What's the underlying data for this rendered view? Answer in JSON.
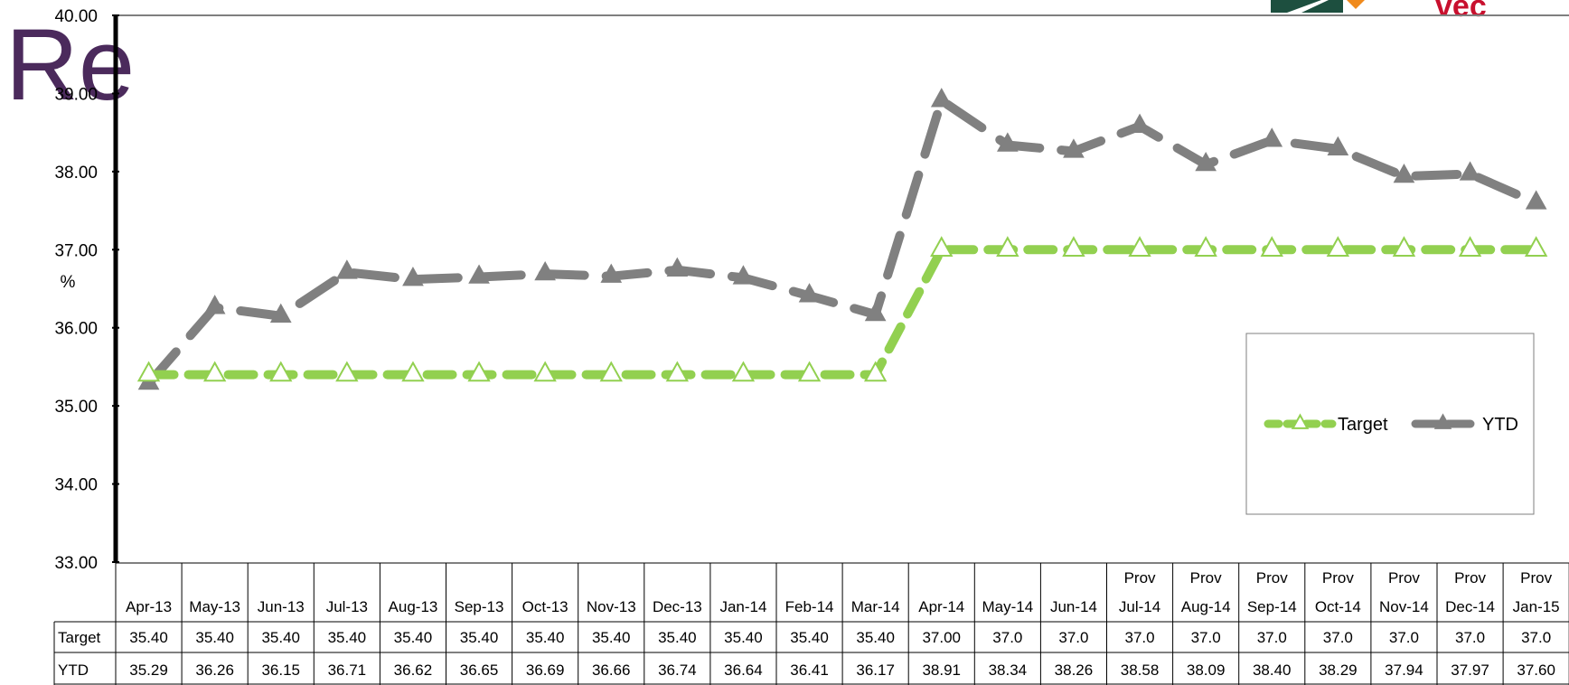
{
  "title_fragment": "Re",
  "logo": {
    "brand_text": "vec",
    "colors": {
      "green": "#1d4f3f",
      "orange": "#f08a1c",
      "red": "#c8102e"
    }
  },
  "chart_data": {
    "type": "line",
    "ylabel": "%",
    "ylim": [
      33.0,
      40.0
    ],
    "yticks": [
      "33.00",
      "34.00",
      "35.00",
      "36.00",
      "37.00",
      "38.00",
      "39.00",
      "40.00"
    ],
    "grid": false,
    "legend_position": "right",
    "categories": [
      {
        "prefix": "",
        "label": "Apr-13"
      },
      {
        "prefix": "",
        "label": "May-13"
      },
      {
        "prefix": "",
        "label": "Jun-13"
      },
      {
        "prefix": "",
        "label": "Jul-13"
      },
      {
        "prefix": "",
        "label": "Aug-13"
      },
      {
        "prefix": "",
        "label": "Sep-13"
      },
      {
        "prefix": "",
        "label": "Oct-13"
      },
      {
        "prefix": "",
        "label": "Nov-13"
      },
      {
        "prefix": "",
        "label": "Dec-13"
      },
      {
        "prefix": "",
        "label": "Jan-14"
      },
      {
        "prefix": "",
        "label": "Feb-14"
      },
      {
        "prefix": "",
        "label": "Mar-14"
      },
      {
        "prefix": "",
        "label": "Apr-14"
      },
      {
        "prefix": "",
        "label": "May-14"
      },
      {
        "prefix": "",
        "label": "Jun-14"
      },
      {
        "prefix": "Prov",
        "label": "Jul-14"
      },
      {
        "prefix": "Prov",
        "label": "Aug-14"
      },
      {
        "prefix": "Prov",
        "label": "Sep-14"
      },
      {
        "prefix": "Prov",
        "label": "Oct-14"
      },
      {
        "prefix": "Prov",
        "label": "Nov-14"
      },
      {
        "prefix": "Prov",
        "label": "Dec-14"
      },
      {
        "prefix": "Prov",
        "label": "Jan-15"
      }
    ],
    "series": [
      {
        "name": "Target",
        "color": "#92d050",
        "marker": "open-triangle",
        "values": [
          35.4,
          35.4,
          35.4,
          35.4,
          35.4,
          35.4,
          35.4,
          35.4,
          35.4,
          35.4,
          35.4,
          35.4,
          37.0,
          37.0,
          37.0,
          37.0,
          37.0,
          37.0,
          37.0,
          37.0,
          37.0,
          37.0
        ],
        "labels": [
          "35.40",
          "35.40",
          "35.40",
          "35.40",
          "35.40",
          "35.40",
          "35.40",
          "35.40",
          "35.40",
          "35.40",
          "35.40",
          "35.40",
          "37.00",
          "37.0",
          "37.0",
          "37.0",
          "37.0",
          "37.0",
          "37.0",
          "37.0",
          "37.0",
          "37.0"
        ]
      },
      {
        "name": "YTD",
        "color": "#808080",
        "marker": "filled-triangle",
        "values": [
          35.29,
          36.26,
          36.15,
          36.71,
          36.62,
          36.65,
          36.69,
          36.66,
          36.74,
          36.64,
          36.41,
          36.17,
          38.91,
          38.34,
          38.26,
          38.58,
          38.09,
          38.4,
          38.29,
          37.94,
          37.97,
          37.6
        ],
        "labels": [
          "35.29",
          "36.26",
          "36.15",
          "36.71",
          "36.62",
          "36.65",
          "36.69",
          "36.66",
          "36.74",
          "36.64",
          "36.41",
          "36.17",
          "38.91",
          "38.34",
          "38.26",
          "38.58",
          "38.09",
          "38.40",
          "38.29",
          "37.94",
          "37.97",
          "37.60"
        ]
      }
    ]
  }
}
